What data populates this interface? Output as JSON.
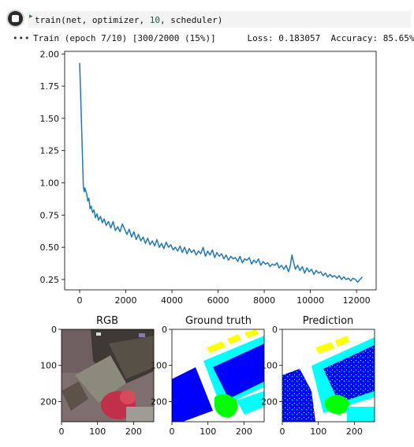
{
  "cell": {
    "code_prefix": "train(net, optimizer, ",
    "code_number": "10",
    "code_suffix": ", scheduler)"
  },
  "output": {
    "dots": "•••",
    "progress_text": "Train (epoch 7/10) [300/2000 (15%)]",
    "loss_text": "Loss: 0.183057",
    "accuracy_text": "Accuracy: 85.65%"
  },
  "chart_data": {
    "type": "line",
    "title": "",
    "xlabel": "",
    "ylabel": "",
    "xlim": [
      -650,
      12850
    ],
    "ylim": [
      0.17,
      2.02
    ],
    "xticks": [
      "0",
      "2000",
      "4000",
      "6000",
      "8000",
      "10000",
      "12000"
    ],
    "yticks": [
      "0.25",
      "0.50",
      "0.75",
      "1.00",
      "1.25",
      "1.50",
      "1.75",
      "2.00"
    ],
    "color": "#1f77b4",
    "series": [
      {
        "x": [
          0,
          40,
          80,
          120,
          160,
          200,
          230,
          260,
          300,
          350,
          400,
          450,
          500,
          560,
          620,
          680,
          750,
          820,
          900,
          980,
          1060,
          1150,
          1250,
          1350,
          1450,
          1550,
          1650,
          1750,
          1850,
          1950,
          2050,
          2150,
          2250,
          2350,
          2450,
          2550,
          2650,
          2750,
          2850,
          2950,
          3050,
          3150,
          3250,
          3350,
          3450,
          3550,
          3650,
          3750,
          3850,
          3950,
          4050,
          4150,
          4250,
          4350,
          4450,
          4550,
          4650,
          4750,
          4850,
          4950,
          5050,
          5150,
          5250,
          5350,
          5450,
          5550,
          5650,
          5750,
          5850,
          5950,
          6050,
          6150,
          6250,
          6350,
          6450,
          6550,
          6650,
          6750,
          6850,
          6950,
          7050,
          7150,
          7250,
          7350,
          7450,
          7550,
          7650,
          7750,
          7850,
          7950,
          8050,
          8150,
          8250,
          8350,
          8450,
          8550,
          8650,
          8750,
          8850,
          8950,
          9050,
          9120,
          9200,
          9280,
          9350,
          9450,
          9550,
          9650,
          9750,
          9850,
          9950,
          10050,
          10150,
          10250,
          10350,
          10450,
          10550,
          10650,
          10750,
          10850,
          10950,
          11050,
          11150,
          11250,
          11350,
          11450,
          11550,
          11650,
          11750,
          11850,
          11950,
          12050,
          12150,
          12250
        ],
        "y": [
          1.93,
          1.7,
          1.45,
          1.22,
          0.97,
          0.93,
          0.96,
          0.94,
          0.92,
          0.86,
          0.88,
          0.8,
          0.82,
          0.77,
          0.79,
          0.73,
          0.76,
          0.71,
          0.74,
          0.69,
          0.72,
          0.67,
          0.7,
          0.65,
          0.7,
          0.63,
          0.66,
          0.62,
          0.68,
          0.64,
          0.6,
          0.64,
          0.58,
          0.62,
          0.56,
          0.6,
          0.55,
          0.58,
          0.53,
          0.57,
          0.52,
          0.55,
          0.51,
          0.56,
          0.5,
          0.53,
          0.49,
          0.54,
          0.5,
          0.52,
          0.48,
          0.5,
          0.47,
          0.51,
          0.46,
          0.5,
          0.45,
          0.49,
          0.46,
          0.48,
          0.44,
          0.47,
          0.45,
          0.5,
          0.43,
          0.47,
          0.44,
          0.48,
          0.42,
          0.46,
          0.43,
          0.45,
          0.41,
          0.44,
          0.4,
          0.43,
          0.41,
          0.42,
          0.39,
          0.43,
          0.38,
          0.41,
          0.4,
          0.42,
          0.37,
          0.4,
          0.38,
          0.41,
          0.36,
          0.39,
          0.37,
          0.38,
          0.35,
          0.37,
          0.36,
          0.38,
          0.34,
          0.36,
          0.33,
          0.36,
          0.31,
          0.35,
          0.44,
          0.38,
          0.33,
          0.36,
          0.32,
          0.35,
          0.3,
          0.34,
          0.31,
          0.33,
          0.29,
          0.32,
          0.3,
          0.31,
          0.28,
          0.3,
          0.27,
          0.29,
          0.27,
          0.28,
          0.26,
          0.28,
          0.25,
          0.27,
          0.25,
          0.26,
          0.24,
          0.26,
          0.25,
          0.23,
          0.25,
          0.27
        ]
      }
    ]
  },
  "image_panels": {
    "titles": [
      "RGB",
      "Ground truth",
      "Prediction"
    ],
    "yticks": [
      "0",
      "100",
      "200"
    ],
    "xticks": [
      "0",
      "100",
      "200"
    ]
  }
}
